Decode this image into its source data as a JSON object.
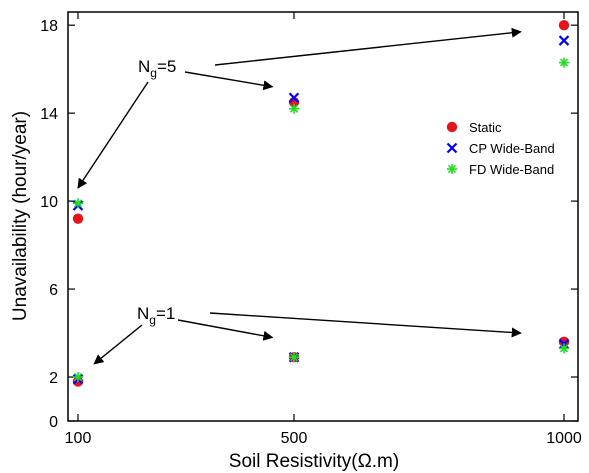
{
  "chart_data": {
    "type": "scatter",
    "xlabel": "Soil Resistivity(Ω.m)",
    "ylabel": "Unavailability (hour/year)",
    "x_ticks": [
      100,
      500,
      1000
    ],
    "y_ticks": [
      0,
      2,
      6,
      10,
      14,
      18
    ],
    "xlim": [
      100,
      1000
    ],
    "ylim": [
      0,
      18.6
    ],
    "grid": false,
    "legend_position": "right-middle",
    "series": [
      {
        "name": "Static",
        "marker": "filled-circle",
        "color": "#e8141c",
        "points": [
          {
            "x": 100,
            "y": 9.2
          },
          {
            "x": 500,
            "y": 14.5
          },
          {
            "x": 1000,
            "y": 18.0
          },
          {
            "x": 100,
            "y": 1.8
          },
          {
            "x": 500,
            "y": 2.9
          },
          {
            "x": 1000,
            "y": 3.6
          }
        ]
      },
      {
        "name": "CP Wide-Band",
        "marker": "x",
        "color": "#0000ff",
        "points": [
          {
            "x": 100,
            "y": 9.8
          },
          {
            "x": 500,
            "y": 14.7
          },
          {
            "x": 1000,
            "y": 17.3
          },
          {
            "x": 100,
            "y": 1.9
          },
          {
            "x": 500,
            "y": 2.9
          },
          {
            "x": 1000,
            "y": 3.5
          }
        ]
      },
      {
        "name": "FD Wide-Band",
        "marker": "asterisk",
        "color": "#22dd22",
        "points": [
          {
            "x": 100,
            "y": 9.9
          },
          {
            "x": 500,
            "y": 14.2
          },
          {
            "x": 1000,
            "y": 16.3
          },
          {
            "x": 100,
            "y": 2.0
          },
          {
            "x": 500,
            "y": 2.9
          },
          {
            "x": 1000,
            "y": 3.3
          }
        ]
      }
    ],
    "annotations": [
      {
        "text_main": "N",
        "text_sub": "g",
        "text_tail": "=5",
        "targets": [
          {
            "x": 100,
            "y": 10.6
          },
          {
            "x": 460,
            "y": 15.2
          },
          {
            "x": 920,
            "y": 17.7
          }
        ]
      },
      {
        "text_main": "N",
        "text_sub": "g",
        "text_tail": "=1",
        "targets": [
          {
            "x": 130,
            "y": 2.6
          },
          {
            "x": 460,
            "y": 3.8
          },
          {
            "x": 920,
            "y": 4.0
          }
        ]
      }
    ]
  }
}
